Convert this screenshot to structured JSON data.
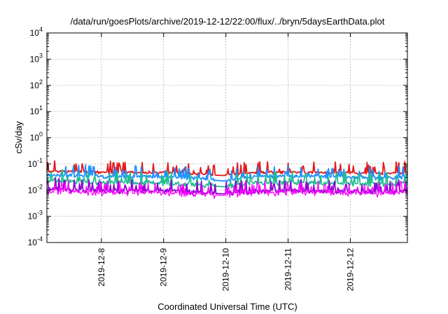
{
  "chart_data": {
    "type": "line",
    "title": "/data/run/goesPlots/archive/2019-12-12/22:00/flux/../bryn/5daysEarthData.plot",
    "xlabel": "Coordinated Universal Time (UTC)",
    "ylabel": "cSv/day",
    "yscale": "log",
    "ylim": [
      0.0001,
      10000
    ],
    "xlim": [
      "2019-12-07T03:00",
      "2019-12-12T22:00"
    ],
    "grid": true,
    "legend": "none",
    "y_ticks": [
      {
        "value": 10000,
        "base": "10",
        "exp": "4"
      },
      {
        "value": 1000,
        "base": "10",
        "exp": "3"
      },
      {
        "value": 100,
        "base": "10",
        "exp": "2"
      },
      {
        "value": 10,
        "base": "10",
        "exp": "1"
      },
      {
        "value": 1,
        "base": "10",
        "exp": "0"
      },
      {
        "value": 0.1,
        "base": "10",
        "exp": "-1"
      },
      {
        "value": 0.01,
        "base": "10",
        "exp": "-2"
      },
      {
        "value": 0.001,
        "base": "10",
        "exp": "-3"
      },
      {
        "value": 0.0001,
        "base": "10",
        "exp": "-4"
      }
    ],
    "x_ticks": [
      "2019-12-8",
      "2019-12-9",
      "2019-12-10",
      "2019-12-11",
      "2019-12-12"
    ],
    "series": [
      {
        "color": "#e41a1c",
        "x": [
          "2019-12-07T03:00",
          "2019-12-08T00:00",
          "2019-12-09T00:00",
          "2019-12-09T23:00",
          "2019-12-10T12:00",
          "2019-12-11T12:00",
          "2019-12-12T12:00",
          "2019-12-12T22:00"
        ],
        "values": [
          0.055,
          0.05,
          0.05,
          0.04,
          0.05,
          0.05,
          0.045,
          0.05
        ]
      },
      {
        "color": "#1e90ff",
        "x": [
          "2019-12-07T03:00",
          "2019-12-08T00:00",
          "2019-12-09T00:00",
          "2019-12-09T23:00",
          "2019-12-10T12:00",
          "2019-12-11T12:00",
          "2019-12-12T12:00",
          "2019-12-12T22:00"
        ],
        "values": [
          0.04,
          0.035,
          0.035,
          0.025,
          0.035,
          0.035,
          0.03,
          0.035
        ]
      },
      {
        "color": "#1fbf8f",
        "x": [
          "2019-12-07T03:00",
          "2019-12-08T00:00",
          "2019-12-09T00:00",
          "2019-12-09T23:00",
          "2019-12-10T12:00",
          "2019-12-11T12:00",
          "2019-12-12T12:00",
          "2019-12-12T22:00"
        ],
        "values": [
          0.025,
          0.02,
          0.02,
          0.015,
          0.02,
          0.02,
          0.018,
          0.02
        ]
      },
      {
        "color": "#9400d3",
        "x": [
          "2019-12-07T03:00",
          "2019-12-08T00:00",
          "2019-12-09T00:00",
          "2019-12-09T23:00",
          "2019-12-10T12:00",
          "2019-12-11T12:00",
          "2019-12-12T12:00",
          "2019-12-12T22:00"
        ],
        "values": [
          0.012,
          0.01,
          0.01,
          0.008,
          0.01,
          0.01,
          0.009,
          0.01
        ]
      },
      {
        "color": "#ff00ff",
        "x": [
          "2019-12-07T03:00",
          "2019-12-08T00:00",
          "2019-12-09T00:00",
          "2019-12-09T23:00",
          "2019-12-10T12:00",
          "2019-12-11T12:00",
          "2019-12-12T12:00",
          "2019-12-12T22:00"
        ],
        "values": [
          0.01,
          0.009,
          0.009,
          0.007,
          0.009,
          0.009,
          0.008,
          0.009
        ]
      }
    ]
  }
}
